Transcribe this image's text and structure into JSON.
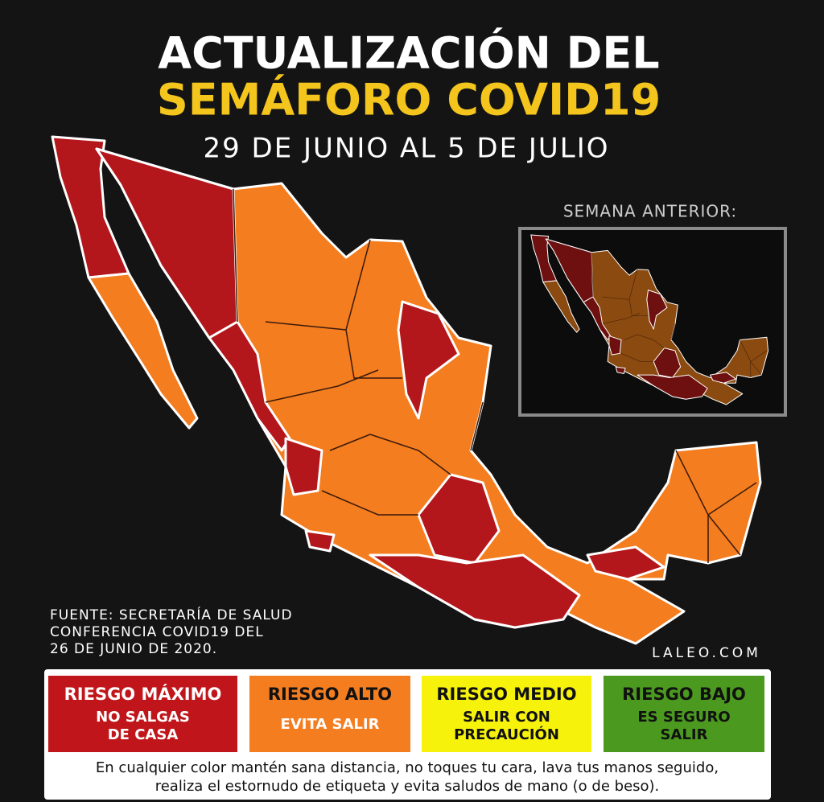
{
  "header": {
    "title_line1": "ACTUALIZACIÓN DEL",
    "title_line2": "SEMÁFORO COVID19",
    "dates": "29 DE JUNIO AL 5 DE JULIO"
  },
  "inset": {
    "label": "SEMANA ANTERIOR:"
  },
  "source": {
    "lines": [
      "FUENTE: SECRETARÍA DE SALUD",
      "CONFERENCIA COVID19 DEL",
      "26 DE JUNIO DE 2020."
    ]
  },
  "site": "LALEO.COM",
  "legend": [
    {
      "title": "RIESGO MÁXIMO",
      "lines": [
        "NO SALGAS",
        "DE CASA"
      ]
    },
    {
      "title": "RIESGO ALTO",
      "lines": [
        "EVITA SALIR"
      ]
    },
    {
      "title": "RIESGO MEDIO",
      "lines": [
        "SALIR CON",
        "PRECAUCIÓN"
      ]
    },
    {
      "title": "RIESGO BAJO",
      "lines": [
        "ES SEGURO",
        "SALIR"
      ]
    }
  ],
  "note": {
    "lines": [
      "En cualquier color mantén sana distancia, no toques tu cara, lava tus manos seguido,",
      "realiza el estornudo de etiqueta y evita saludos de mano (o de beso)."
    ]
  }
}
